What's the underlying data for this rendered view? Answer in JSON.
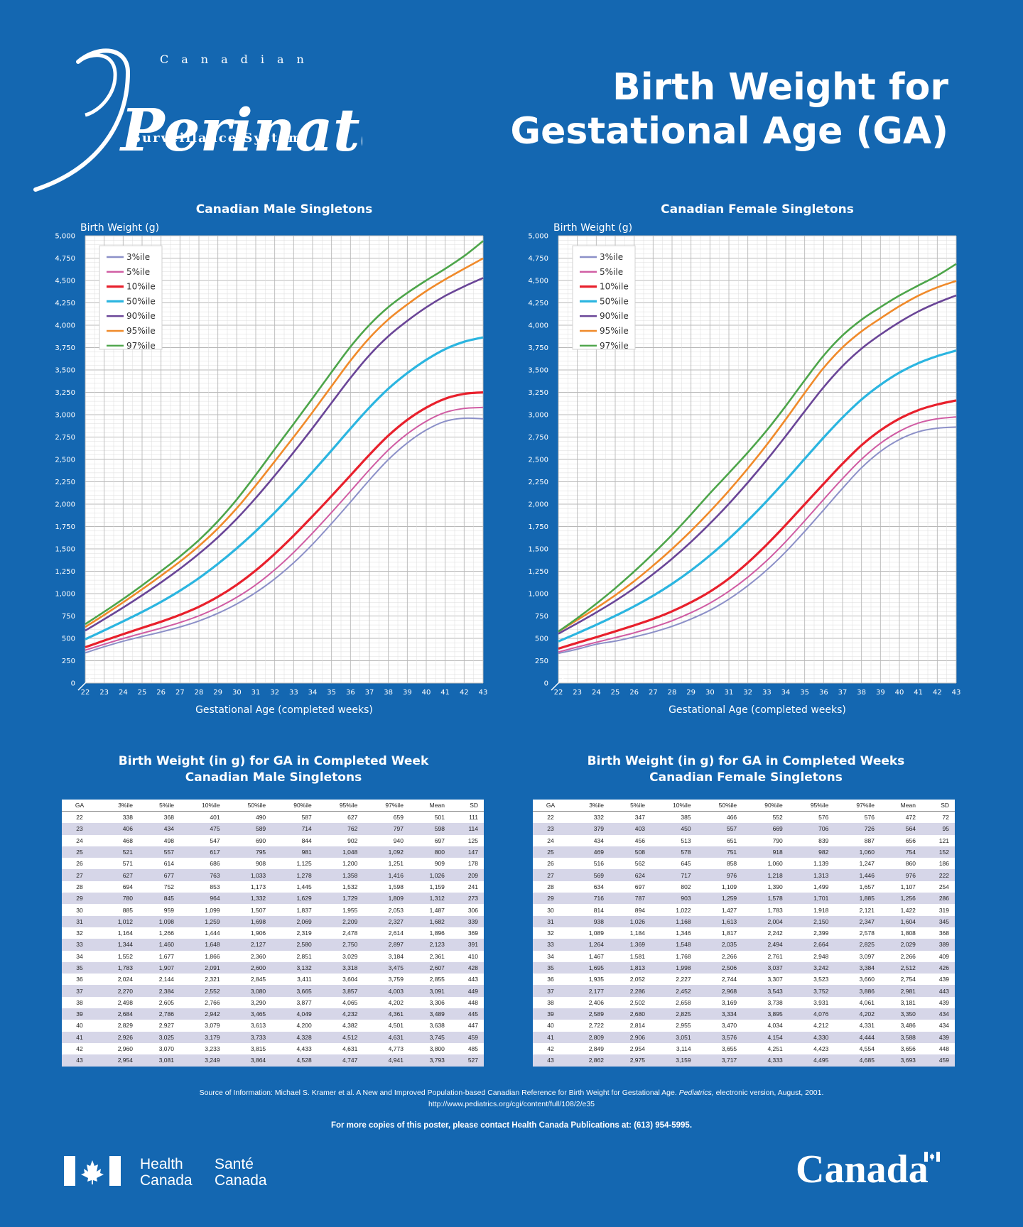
{
  "logo": {
    "canadian": "Canadian",
    "perinatal": "Perinatal",
    "system": "Surveillance System"
  },
  "poster_title_line1": "Birth Weight for",
  "poster_title_line2": "Gestational Age (GA)",
  "legend_labels": [
    "3%ile",
    "5%ile",
    "10%ile",
    "50%ile",
    "90%ile",
    "95%ile",
    "97%ile"
  ],
  "series_colors": [
    "#8c90c8",
    "#d05ca3",
    "#e8202c",
    "#2bb5e0",
    "#6a4597",
    "#f08a2a",
    "#4da54a"
  ],
  "table_headers": [
    "GA",
    "3%ile",
    "5%ile",
    "10%ile",
    "50%ile",
    "90%ile",
    "95%ile",
    "97%ile",
    "Mean",
    "SD"
  ],
  "chart_data": [
    {
      "type": "line",
      "title": "Canadian Male Singletons",
      "ylabel": "Birth Weight (g)",
      "xlabel": "Gestational Age (completed weeks)",
      "ylim": [
        0,
        5000
      ],
      "xlim": [
        22,
        43
      ],
      "grid": true,
      "legend": "top-left",
      "x": [
        22,
        23,
        24,
        25,
        26,
        27,
        28,
        29,
        30,
        31,
        32,
        33,
        34,
        35,
        36,
        37,
        38,
        39,
        40,
        41,
        42,
        43
      ],
      "series": [
        {
          "name": "3%ile",
          "values": [
            338,
            406,
            468,
            521,
            571,
            627,
            694,
            780,
            885,
            1012,
            1164,
            1344,
            1552,
            1783,
            2024,
            2270,
            2498,
            2684,
            2829,
            2926,
            2960,
            2954
          ]
        },
        {
          "name": "5%ile",
          "values": [
            368,
            434,
            498,
            557,
            614,
            677,
            752,
            845,
            959,
            1098,
            1266,
            1460,
            1677,
            1907,
            2144,
            2384,
            2605,
            2786,
            2927,
            3025,
            3070,
            3081
          ]
        },
        {
          "name": "10%ile",
          "values": [
            401,
            475,
            547,
            617,
            686,
            763,
            853,
            964,
            1099,
            1259,
            1444,
            1648,
            1866,
            2091,
            2321,
            2552,
            2766,
            2942,
            3079,
            3179,
            3233,
            3249
          ]
        },
        {
          "name": "50%ile",
          "values": [
            490,
            589,
            690,
            795,
            908,
            1033,
            1173,
            1332,
            1507,
            1698,
            1906,
            2127,
            2360,
            2600,
            2845,
            3080,
            3290,
            3465,
            3613,
            3733,
            3815,
            3864
          ]
        },
        {
          "name": "90%ile",
          "values": [
            587,
            714,
            844,
            981,
            1125,
            1278,
            1445,
            1629,
            1837,
            2069,
            2319,
            2580,
            2851,
            3132,
            3411,
            3665,
            3877,
            4049,
            4200,
            4328,
            4433,
            4528
          ]
        },
        {
          "name": "95%ile",
          "values": [
            627,
            762,
            902,
            1048,
            1200,
            1358,
            1532,
            1729,
            1955,
            2209,
            2478,
            2750,
            3029,
            3318,
            3604,
            3857,
            4065,
            4232,
            4382,
            4512,
            4631,
            4747
          ]
        },
        {
          "name": "97%ile",
          "values": [
            659,
            797,
            940,
            1092,
            1251,
            1416,
            1598,
            1809,
            2053,
            2327,
            2614,
            2897,
            3184,
            3475,
            3759,
            4003,
            4202,
            4361,
            4501,
            4631,
            4773,
            4941
          ]
        }
      ]
    },
    {
      "type": "line",
      "title": "Canadian Female Singletons",
      "ylabel": "Birth Weight (g)",
      "xlabel": "Gestational Age (completed weeks)",
      "ylim": [
        0,
        5000
      ],
      "xlim": [
        22,
        43
      ],
      "grid": true,
      "legend": "top-left",
      "x": [
        22,
        23,
        24,
        25,
        26,
        27,
        28,
        29,
        30,
        31,
        32,
        33,
        34,
        35,
        36,
        37,
        38,
        39,
        40,
        41,
        42,
        43
      ],
      "series": [
        {
          "name": "3%ile",
          "values": [
            332,
            379,
            434,
            469,
            516,
            569,
            634,
            716,
            814,
            938,
            1089,
            1264,
            1467,
            1695,
            1935,
            2177,
            2406,
            2589,
            2722,
            2809,
            2849,
            2862
          ]
        },
        {
          "name": "5%ile",
          "values": [
            347,
            403,
            456,
            508,
            562,
            624,
            697,
            787,
            894,
            1026,
            1184,
            1369,
            1581,
            1813,
            2052,
            2286,
            2502,
            2680,
            2814,
            2906,
            2954,
            2975
          ]
        },
        {
          "name": "10%ile",
          "values": [
            385,
            450,
            513,
            578,
            645,
            717,
            802,
            903,
            1022,
            1168,
            1346,
            1548,
            1768,
            1998,
            2227,
            2452,
            2658,
            2825,
            2955,
            3051,
            3114,
            3159
          ]
        },
        {
          "name": "50%ile",
          "values": [
            466,
            557,
            651,
            751,
            858,
            976,
            1109,
            1259,
            1427,
            1613,
            1817,
            2035,
            2266,
            2506,
            2744,
            2968,
            3169,
            3334,
            3470,
            3576,
            3655,
            3717
          ]
        },
        {
          "name": "90%ile",
          "values": [
            552,
            669,
            790,
            918,
            1060,
            1218,
            1390,
            1578,
            1783,
            2004,
            2242,
            2494,
            2761,
            3037,
            3307,
            3543,
            3738,
            3895,
            4034,
            4154,
            4251,
            4333
          ]
        },
        {
          "name": "95%ile",
          "values": [
            576,
            706,
            839,
            982,
            1139,
            1313,
            1499,
            1701,
            1918,
            2150,
            2399,
            2664,
            2948,
            3242,
            3523,
            3752,
            3931,
            4076,
            4212,
            4330,
            4423,
            4495
          ]
        },
        {
          "name": "97%ile",
          "values": [
            576,
            726,
            887,
            1060,
            1247,
            1446,
            1657,
            1885,
            2121,
            2347,
            2578,
            2825,
            3097,
            3384,
            3660,
            3886,
            4061,
            4202,
            4331,
            4444,
            4554,
            4685
          ]
        }
      ]
    }
  ],
  "male_table": {
    "title_line1": "Birth Weight (in g) for GA in Completed Week",
    "title_line2": "Canadian Male Singletons",
    "rows": [
      [
        "22",
        "338",
        "368",
        "401",
        "490",
        "587",
        "627",
        "659",
        "501",
        "111"
      ],
      [
        "23",
        "406",
        "434",
        "475",
        "589",
        "714",
        "762",
        "797",
        "598",
        "114"
      ],
      [
        "24",
        "468",
        "498",
        "547",
        "690",
        "844",
        "902",
        "940",
        "697",
        "125"
      ],
      [
        "25",
        "521",
        "557",
        "617",
        "795",
        "981",
        "1,048",
        "1,092",
        "800",
        "147"
      ],
      [
        "26",
        "571",
        "614",
        "686",
        "908",
        "1,125",
        "1,200",
        "1,251",
        "909",
        "178"
      ],
      [
        "27",
        "627",
        "677",
        "763",
        "1,033",
        "1,278",
        "1,358",
        "1,416",
        "1,026",
        "209"
      ],
      [
        "28",
        "694",
        "752",
        "853",
        "1,173",
        "1,445",
        "1,532",
        "1,598",
        "1,159",
        "241"
      ],
      [
        "29",
        "780",
        "845",
        "964",
        "1,332",
        "1,629",
        "1,729",
        "1,809",
        "1,312",
        "273"
      ],
      [
        "30",
        "885",
        "959",
        "1,099",
        "1,507",
        "1,837",
        "1,955",
        "2,053",
        "1,487",
        "306"
      ],
      [
        "31",
        "1,012",
        "1,098",
        "1,259",
        "1,698",
        "2,069",
        "2,209",
        "2,327",
        "1,682",
        "339"
      ],
      [
        "32",
        "1,164",
        "1,266",
        "1,444",
        "1,906",
        "2,319",
        "2,478",
        "2,614",
        "1,896",
        "369"
      ],
      [
        "33",
        "1,344",
        "1,460",
        "1,648",
        "2,127",
        "2,580",
        "2,750",
        "2,897",
        "2,123",
        "391"
      ],
      [
        "34",
        "1,552",
        "1,677",
        "1,866",
        "2,360",
        "2,851",
        "3,029",
        "3,184",
        "2,361",
        "410"
      ],
      [
        "35",
        "1,783",
        "1,907",
        "2,091",
        "2,600",
        "3,132",
        "3,318",
        "3,475",
        "2,607",
        "428"
      ],
      [
        "36",
        "2,024",
        "2,144",
        "2,321",
        "2,845",
        "3,411",
        "3,604",
        "3,759",
        "2,855",
        "443"
      ],
      [
        "37",
        "2,270",
        "2,384",
        "2,552",
        "3,080",
        "3,665",
        "3,857",
        "4,003",
        "3,091",
        "449"
      ],
      [
        "38",
        "2,498",
        "2,605",
        "2,766",
        "3,290",
        "3,877",
        "4,065",
        "4,202",
        "3,306",
        "448"
      ],
      [
        "39",
        "2,684",
        "2,786",
        "2,942",
        "3,465",
        "4,049",
        "4,232",
        "4,361",
        "3,489",
        "445"
      ],
      [
        "40",
        "2,829",
        "2,927",
        "3,079",
        "3,613",
        "4,200",
        "4,382",
        "4,501",
        "3,638",
        "447"
      ],
      [
        "41",
        "2,926",
        "3,025",
        "3,179",
        "3,733",
        "4,328",
        "4,512",
        "4,631",
        "3,745",
        "459"
      ],
      [
        "42",
        "2,960",
        "3,070",
        "3,233",
        "3,815",
        "4,433",
        "4,631",
        "4,773",
        "3,800",
        "485"
      ],
      [
        "43",
        "2,954",
        "3,081",
        "3,249",
        "3,864",
        "4,528",
        "4,747",
        "4,941",
        "3,793",
        "527"
      ]
    ]
  },
  "female_table": {
    "title_line1": "Birth Weight (in g) for GA in Completed Weeks",
    "title_line2": "Canadian Female Singletons",
    "rows": [
      [
        "22",
        "332",
        "347",
        "385",
        "466",
        "552",
        "576",
        "576",
        "472",
        "72"
      ],
      [
        "23",
        "379",
        "403",
        "450",
        "557",
        "669",
        "706",
        "726",
        "564",
        "95"
      ],
      [
        "24",
        "434",
        "456",
        "513",
        "651",
        "790",
        "839",
        "887",
        "656",
        "121"
      ],
      [
        "25",
        "469",
        "508",
        "578",
        "751",
        "918",
        "982",
        "1,060",
        "754",
        "152"
      ],
      [
        "26",
        "516",
        "562",
        "645",
        "858",
        "1,060",
        "1,139",
        "1,247",
        "860",
        "186"
      ],
      [
        "27",
        "569",
        "624",
        "717",
        "976",
        "1,218",
        "1,313",
        "1,446",
        "976",
        "222"
      ],
      [
        "28",
        "634",
        "697",
        "802",
        "1,109",
        "1,390",
        "1,499",
        "1,657",
        "1,107",
        "254"
      ],
      [
        "29",
        "716",
        "787",
        "903",
        "1,259",
        "1,578",
        "1,701",
        "1,885",
        "1,256",
        "286"
      ],
      [
        "30",
        "814",
        "894",
        "1,022",
        "1,427",
        "1,783",
        "1,918",
        "2,121",
        "1,422",
        "319"
      ],
      [
        "31",
        "938",
        "1,026",
        "1,168",
        "1,613",
        "2,004",
        "2,150",
        "2,347",
        "1,604",
        "345"
      ],
      [
        "32",
        "1,089",
        "1,184",
        "1,346",
        "1,817",
        "2,242",
        "2,399",
        "2,578",
        "1,808",
        "368"
      ],
      [
        "33",
        "1,264",
        "1,369",
        "1,548",
        "2,035",
        "2,494",
        "2,664",
        "2,825",
        "2,029",
        "389"
      ],
      [
        "34",
        "1,467",
        "1,581",
        "1,768",
        "2,266",
        "2,761",
        "2,948",
        "3,097",
        "2,266",
        "409"
      ],
      [
        "35",
        "1,695",
        "1,813",
        "1,998",
        "2,506",
        "3,037",
        "3,242",
        "3,384",
        "2,512",
        "426"
      ],
      [
        "36",
        "1,935",
        "2,052",
        "2,227",
        "2,744",
        "3,307",
        "3,523",
        "3,660",
        "2,754",
        "439"
      ],
      [
        "37",
        "2,177",
        "2,286",
        "2,452",
        "2,968",
        "3,543",
        "3,752",
        "3,886",
        "2,981",
        "443"
      ],
      [
        "38",
        "2,406",
        "2,502",
        "2,658",
        "3,169",
        "3,738",
        "3,931",
        "4,061",
        "3,181",
        "439"
      ],
      [
        "39",
        "2,589",
        "2,680",
        "2,825",
        "3,334",
        "3,895",
        "4,076",
        "4,202",
        "3,350",
        "434"
      ],
      [
        "40",
        "2,722",
        "2,814",
        "2,955",
        "3,470",
        "4,034",
        "4,212",
        "4,331",
        "3,486",
        "434"
      ],
      [
        "41",
        "2,809",
        "2,906",
        "3,051",
        "3,576",
        "4,154",
        "4,330",
        "4,444",
        "3,588",
        "439"
      ],
      [
        "42",
        "2,849",
        "2,954",
        "3,114",
        "3,655",
        "4,251",
        "4,423",
        "4,554",
        "3,656",
        "448"
      ],
      [
        "43",
        "2,862",
        "2,975",
        "3,159",
        "3,717",
        "4,333",
        "4,495",
        "4,685",
        "3,693",
        "459"
      ]
    ]
  },
  "footer": {
    "source_line1_a": "Source of Information: Michael S. Kramer et al. A New and Improved Population-based Canadian Reference for Birth Weight for Gestational Age. ",
    "source_journal": "Pediatrics,",
    "source_line1_b": " electronic version, August, 2001.",
    "source_url": "http://www.pediatrics.org/cgi/content/full/108/2/e35",
    "contact": "For more copies of this poster, please contact Health Canada Publications at: (613) 954-5995.",
    "health_en_1": "Health",
    "health_en_2": "Canada",
    "health_fr_1": "Santé",
    "health_fr_2": "Canada",
    "wordmark": "Canada"
  }
}
